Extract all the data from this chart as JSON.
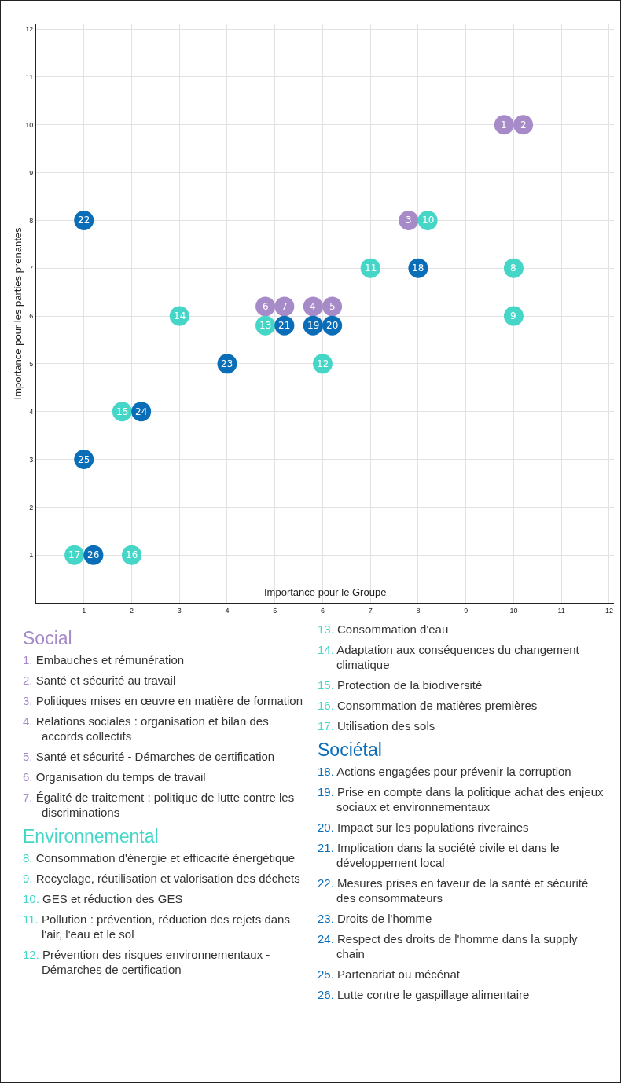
{
  "chart_data": {
    "type": "scatter",
    "xlabel": "Importance pour le Groupe",
    "ylabel": "Importance pour les parties prenantes",
    "xlim": [
      0,
      12.1
    ],
    "ylim": [
      0,
      12.1
    ],
    "xticks": [
      1,
      2,
      3,
      4,
      5,
      6,
      7,
      8,
      9,
      10,
      11,
      12
    ],
    "yticks": [
      1,
      2,
      3,
      4,
      5,
      6,
      7,
      8,
      9,
      10,
      11,
      12
    ],
    "grid": true,
    "marker": "circle",
    "series": [
      {
        "name": "Social",
        "color": "#a78bc9",
        "x": [
          9.8,
          10.2,
          7.8,
          5.8,
          6.2,
          4.8,
          5.2
        ],
        "values": [
          10,
          10,
          8,
          6.2,
          6.2,
          6.2,
          6.2
        ]
      },
      {
        "name": "Environnemental",
        "color": "#45d6c8",
        "x": [
          10,
          10,
          8.2,
          7,
          6,
          4.8,
          3,
          1.8,
          2,
          0.8
        ],
        "values": [
          7,
          6,
          8,
          7,
          5,
          5.8,
          6,
          4,
          1,
          1
        ]
      },
      {
        "name": "Sociétal",
        "color": "#0a6db8",
        "x": [
          8,
          5.8,
          6.2,
          5.2,
          1,
          4,
          2.2,
          1,
          1.2
        ],
        "values": [
          7,
          5.8,
          5.8,
          5.8,
          8,
          5,
          4,
          3,
          1
        ]
      }
    ],
    "annotations": [
      {
        "text": "1",
        "x": 9.8,
        "y": 10
      },
      {
        "text": "2",
        "x": 10.2,
        "y": 10
      },
      {
        "text": "3",
        "x": 7.8,
        "y": 8
      },
      {
        "text": "4",
        "x": 5.8,
        "y": 6.2
      },
      {
        "text": "5",
        "x": 6.2,
        "y": 6.2
      },
      {
        "text": "6",
        "x": 4.8,
        "y": 6.2
      },
      {
        "text": "7",
        "x": 5.2,
        "y": 6.2
      },
      {
        "text": "8",
        "x": 10,
        "y": 7
      },
      {
        "text": "9",
        "x": 10,
        "y": 6
      },
      {
        "text": "10",
        "x": 8.2,
        "y": 8
      },
      {
        "text": "11",
        "x": 7,
        "y": 7
      },
      {
        "text": "12",
        "x": 6,
        "y": 5
      },
      {
        "text": "13",
        "x": 4.8,
        "y": 5.8
      },
      {
        "text": "14",
        "x": 3,
        "y": 6
      },
      {
        "text": "15",
        "x": 1.8,
        "y": 4
      },
      {
        "text": "16",
        "x": 2,
        "y": 1
      },
      {
        "text": "17",
        "x": 0.8,
        "y": 1
      },
      {
        "text": "18",
        "x": 8,
        "y": 7
      },
      {
        "text": "19",
        "x": 5.8,
        "y": 5.8
      },
      {
        "text": "20",
        "x": 6.2,
        "y": 5.8
      },
      {
        "text": "21",
        "x": 5.2,
        "y": 5.8
      },
      {
        "text": "22",
        "x": 1,
        "y": 8
      },
      {
        "text": "23",
        "x": 4,
        "y": 5
      },
      {
        "text": "24",
        "x": 2.2,
        "y": 4
      },
      {
        "text": "25",
        "x": 1,
        "y": 3
      },
      {
        "text": "26",
        "x": 1.2,
        "y": 1
      },
      "1. Embauches et rémunération",
      "2. Santé et sécurité au travail",
      "3. Politiques mises en œuvre en matière de formation",
      "4. Relations sociales : organisation et bilan des accords collectifs",
      "5. Santé et sécurité - Démarches de certification",
      "6. Organisation du temps de travail",
      "7. Égalité de traitement : politique de lutte contre les discriminations",
      "8. Consommation d'énergie et efficacité énergétique",
      "9. Recyclage, réutilisation et valorisation des déchets",
      "10. GES et réduction des GES",
      "11. Pollution : prévention, réduction des rejets dans l'air, l'eau et le sol",
      "12. Prévention des risques environnementaux - Démarches de certification",
      "13. Consommation d'eau",
      "14. Adaptation aux conséquences du changement climatique",
      "15. Protection de la biodiversité",
      "16. Consommation de matières premières",
      "17. Utilisation des sols",
      "18. Actions engagées pour prévenir la corruption",
      "19. Prise en compte dans la politique achat des enjeux sociaux et environnementaux",
      "20. Impact sur les populations riveraines",
      "21. Implication dans la société civile et dans le développement local",
      "22. Mesures prises en faveur de la santé et sécurité des consommateurs",
      "23. Droits de l'homme",
      "24. Respect des droits de l'homme dans la supply chain",
      "25. Partenariat ou mécénat",
      "26. Lutte contre le gaspillage alimentaire"
    ]
  }
}
